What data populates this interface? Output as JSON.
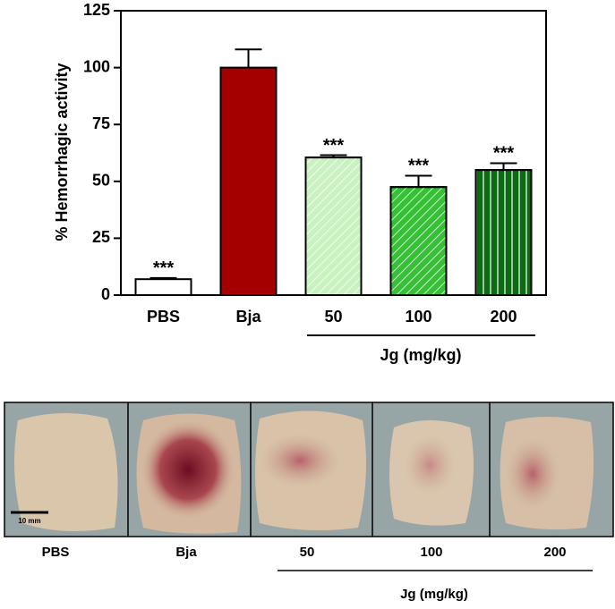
{
  "chart_data": {
    "type": "bar",
    "y_label": "% Hemorrhagic activity",
    "categories": [
      "PBS",
      "Bja",
      "50",
      "100",
      "200"
    ],
    "values": [
      7,
      100,
      60.5,
      47.5,
      55
    ],
    "errors": [
      0.5,
      8,
      1,
      5,
      3
    ],
    "significance": [
      "***",
      null,
      "***",
      "***",
      "***"
    ],
    "colors": [
      "#ffffff",
      "#a50000",
      "#c9f2c0",
      "#35c035",
      "#0b6b12"
    ],
    "patterns": [
      "none",
      "none",
      "diagonal",
      "diagonal",
      "vertical"
    ],
    "group_label": "Jg (mg/kg)",
    "ylim": [
      0,
      125
    ],
    "yticks": [
      0,
      25,
      50,
      75,
      100,
      125
    ]
  },
  "photo_panel": {
    "labels": [
      "PBS",
      "Bja",
      "50",
      "100",
      "200"
    ],
    "group_label": "Jg (mg/kg)",
    "scale_bar": "10 mm"
  }
}
